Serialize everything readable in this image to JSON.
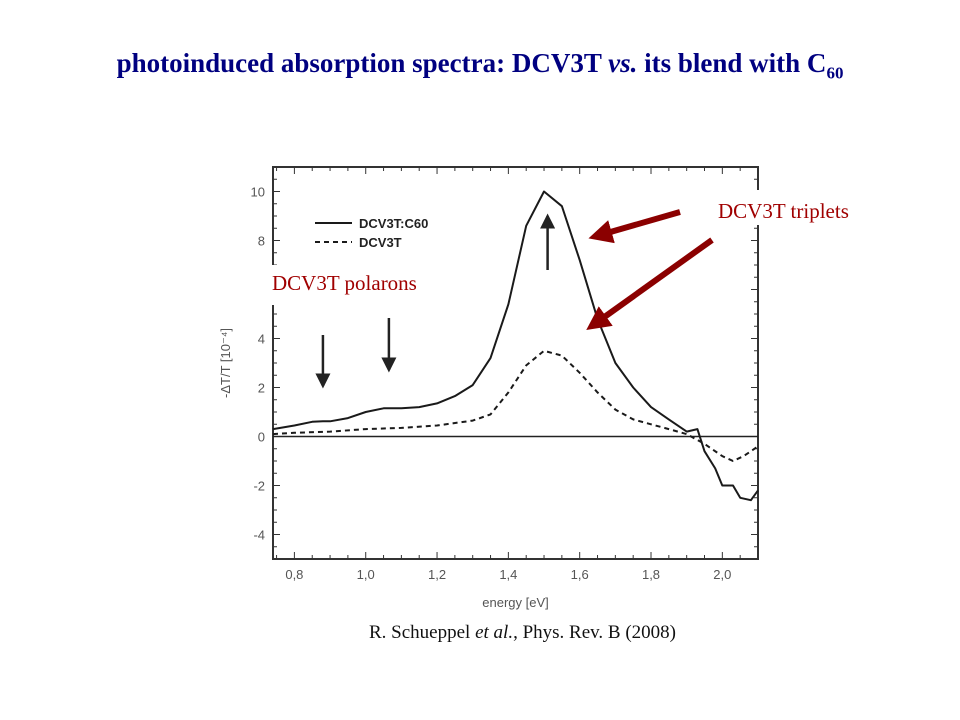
{
  "slide": {
    "title_main": "photoinduced absorption spectra: DCV3T ",
    "title_vs": "vs.",
    "title_rest": " its blend with C",
    "title_sub": "60",
    "citation_authors": "R. Schueppel ",
    "citation_etal": "et al.",
    "citation_rest": ", Phys. Rev. B (2008)",
    "annotation_triplets": "DCV3T triplets",
    "annotation_polarons": "DCV3T polarons",
    "arrow_color": "#8b0000"
  },
  "chart_data": {
    "type": "line",
    "xlabel": "energy [eV]",
    "ylabel": "-ΔT/T [10⁻⁴]",
    "xlim": [
      0.74,
      2.1
    ],
    "ylim": [
      -5,
      11
    ],
    "xticks": [
      "0,8",
      "1,0",
      "1,2",
      "1,4",
      "1,6",
      "1,8",
      "2,0"
    ],
    "xtick_values": [
      0.8,
      1.0,
      1.2,
      1.4,
      1.6,
      1.8,
      2.0
    ],
    "yticks": [
      "-4",
      "-2",
      "0",
      "2",
      "4",
      "8",
      "10"
    ],
    "ytick_values": [
      -4,
      -2,
      0,
      2,
      4,
      8,
      10
    ],
    "legend_position": "top-left",
    "series": [
      {
        "name": "DCV3T:C60",
        "style": "solid",
        "x": [
          0.74,
          0.8,
          0.85,
          0.88,
          0.9,
          0.95,
          1.0,
          1.05,
          1.1,
          1.15,
          1.2,
          1.25,
          1.3,
          1.35,
          1.4,
          1.45,
          1.5,
          1.55,
          1.6,
          1.65,
          1.7,
          1.75,
          1.8,
          1.85,
          1.9,
          1.93,
          1.95,
          1.98,
          2.0,
          2.03,
          2.05,
          2.08,
          2.1
        ],
        "y": [
          0.3,
          0.45,
          0.6,
          0.62,
          0.62,
          0.75,
          1.0,
          1.15,
          1.15,
          1.2,
          1.35,
          1.65,
          2.1,
          3.2,
          5.4,
          8.6,
          10.0,
          9.4,
          7.2,
          4.8,
          3.0,
          2.0,
          1.2,
          0.7,
          0.2,
          0.3,
          -0.6,
          -1.3,
          -2.0,
          -2.0,
          -2.5,
          -2.6,
          -2.2
        ]
      },
      {
        "name": "DCV3T",
        "style": "dashed",
        "x": [
          0.74,
          0.8,
          0.9,
          1.0,
          1.1,
          1.2,
          1.3,
          1.35,
          1.4,
          1.45,
          1.5,
          1.55,
          1.6,
          1.65,
          1.7,
          1.75,
          1.8,
          1.85,
          1.9,
          1.95,
          2.0,
          2.03,
          2.06,
          2.1
        ],
        "y": [
          0.1,
          0.15,
          0.2,
          0.3,
          0.35,
          0.45,
          0.65,
          0.9,
          1.8,
          2.9,
          3.5,
          3.3,
          2.6,
          1.8,
          1.1,
          0.7,
          0.5,
          0.3,
          0.1,
          -0.3,
          -0.8,
          -1.0,
          -0.8,
          -0.4
        ]
      }
    ],
    "marker_arrows_x": [
      0.88,
      1.065,
      1.51
    ]
  }
}
